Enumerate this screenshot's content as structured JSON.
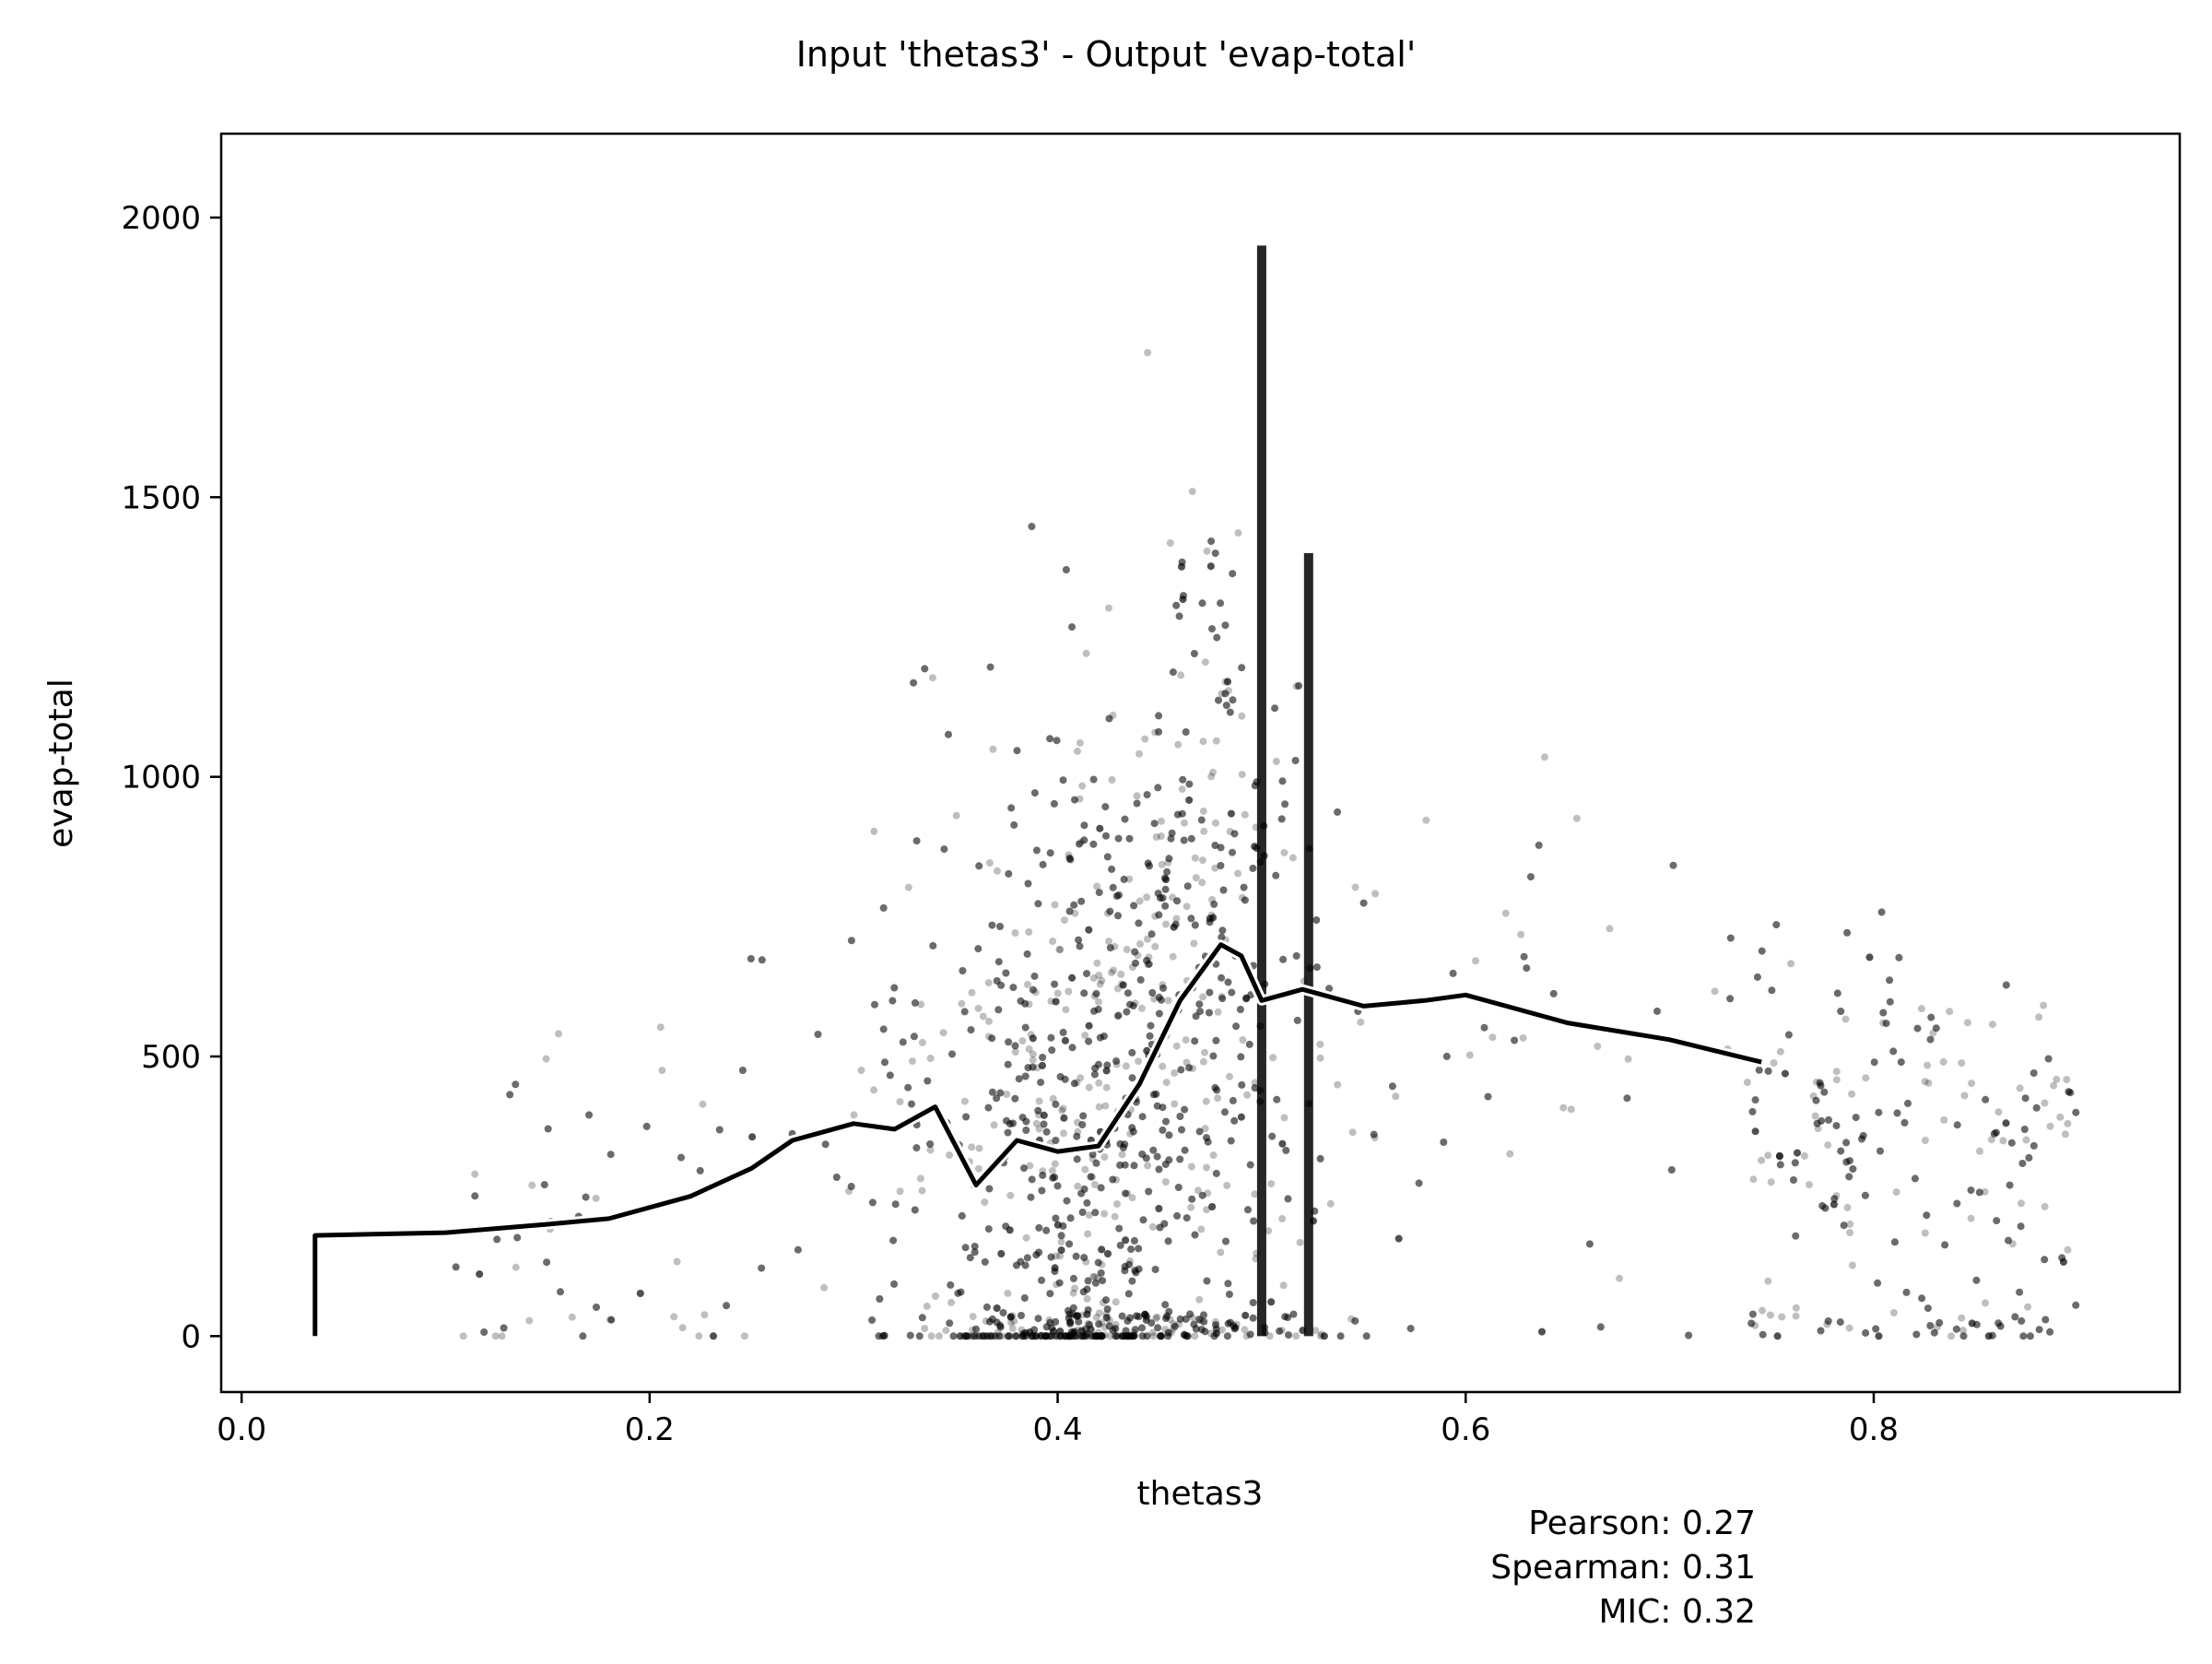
{
  "chart_data": {
    "type": "scatter",
    "title": "Input 'thetas3' - Output 'evap-total'",
    "xlabel": "thetas3",
    "ylabel": "evap-total",
    "xlim": [
      -0.01,
      0.95
    ],
    "ylim": [
      -100,
      2150
    ],
    "xticks": [
      0.0,
      0.2,
      0.4,
      0.6,
      0.8
    ],
    "xtick_labels": [
      "0.0",
      "0.2",
      "0.4",
      "0.6",
      "0.8"
    ],
    "yticks": [
      0,
      500,
      1000,
      1500,
      2000
    ],
    "ytick_labels": [
      "0",
      "500",
      "1000",
      "1500",
      "2000"
    ],
    "grid": false,
    "legend": "none",
    "colors": {
      "points": "#000000",
      "trend_line": "#000000",
      "trend_outline": "#ffffff"
    },
    "point_alpha": 0.25,
    "scatter_density": {
      "x_centers": [
        0.1,
        0.2,
        0.25,
        0.3,
        0.35,
        0.38,
        0.42,
        0.46,
        0.5,
        0.55,
        0.6,
        0.7,
        0.75,
        0.82,
        0.86,
        0.89
      ],
      "relative_density": [
        0.1,
        0.25,
        0.45,
        0.6,
        0.85,
        1.0,
        1.0,
        0.9,
        0.7,
        0.45,
        0.3,
        0.15,
        0.2,
        0.3,
        0.35,
        0.3
      ]
    },
    "series": [
      {
        "type": "line",
        "x": [
          0.036,
          0.036,
          0.1,
          0.15,
          0.18,
          0.22,
          0.25,
          0.27,
          0.3,
          0.32,
          0.34,
          0.36,
          0.38,
          0.4,
          0.42,
          0.44,
          0.46,
          0.48,
          0.49,
          0.5,
          0.52,
          0.55,
          0.58,
          0.6,
          0.65,
          0.7,
          0.745
        ],
        "y": [
          0,
          180,
          185,
          200,
          210,
          250,
          300,
          350,
          380,
          370,
          410,
          270,
          350,
          330,
          340,
          450,
          600,
          700,
          680,
          600,
          620,
          590,
          600,
          610,
          560,
          530,
          490
        ]
      }
    ],
    "annotations": [
      "Pearson: 0.27",
      "Spearman: 0.31",
      "MIC: 0.32"
    ]
  }
}
